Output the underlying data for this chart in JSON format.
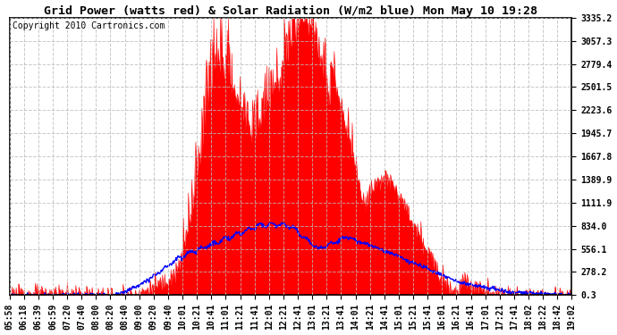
{
  "title": "Grid Power (watts red) & Solar Radiation (W/m2 blue) Mon May 10 19:28",
  "copyright_text": "Copyright 2010 Cartronics.com",
  "yticks": [
    0.3,
    278.2,
    556.1,
    834.0,
    1111.9,
    1389.9,
    1667.8,
    1945.7,
    2223.6,
    2501.5,
    2779.4,
    3057.3,
    3335.2
  ],
  "xtick_labels": [
    "05:58",
    "06:18",
    "06:39",
    "06:59",
    "07:20",
    "07:40",
    "08:00",
    "08:20",
    "08:40",
    "09:00",
    "09:20",
    "09:40",
    "10:01",
    "10:21",
    "10:41",
    "11:01",
    "11:21",
    "11:41",
    "12:01",
    "12:21",
    "12:41",
    "13:01",
    "13:21",
    "13:41",
    "14:01",
    "14:21",
    "14:41",
    "15:01",
    "15:21",
    "15:41",
    "16:01",
    "16:21",
    "16:41",
    "17:01",
    "17:21",
    "17:41",
    "18:02",
    "18:22",
    "18:42",
    "19:02"
  ],
  "ymax": 3335.2,
  "ymin": 0.3,
  "red_color": "#FF0000",
  "blue_color": "#0000FF",
  "bg_color": "#FFFFFF",
  "grid_color": "#BBBBBB",
  "title_fontsize": 9.5,
  "copyright_fontsize": 7,
  "tick_fontsize": 7
}
